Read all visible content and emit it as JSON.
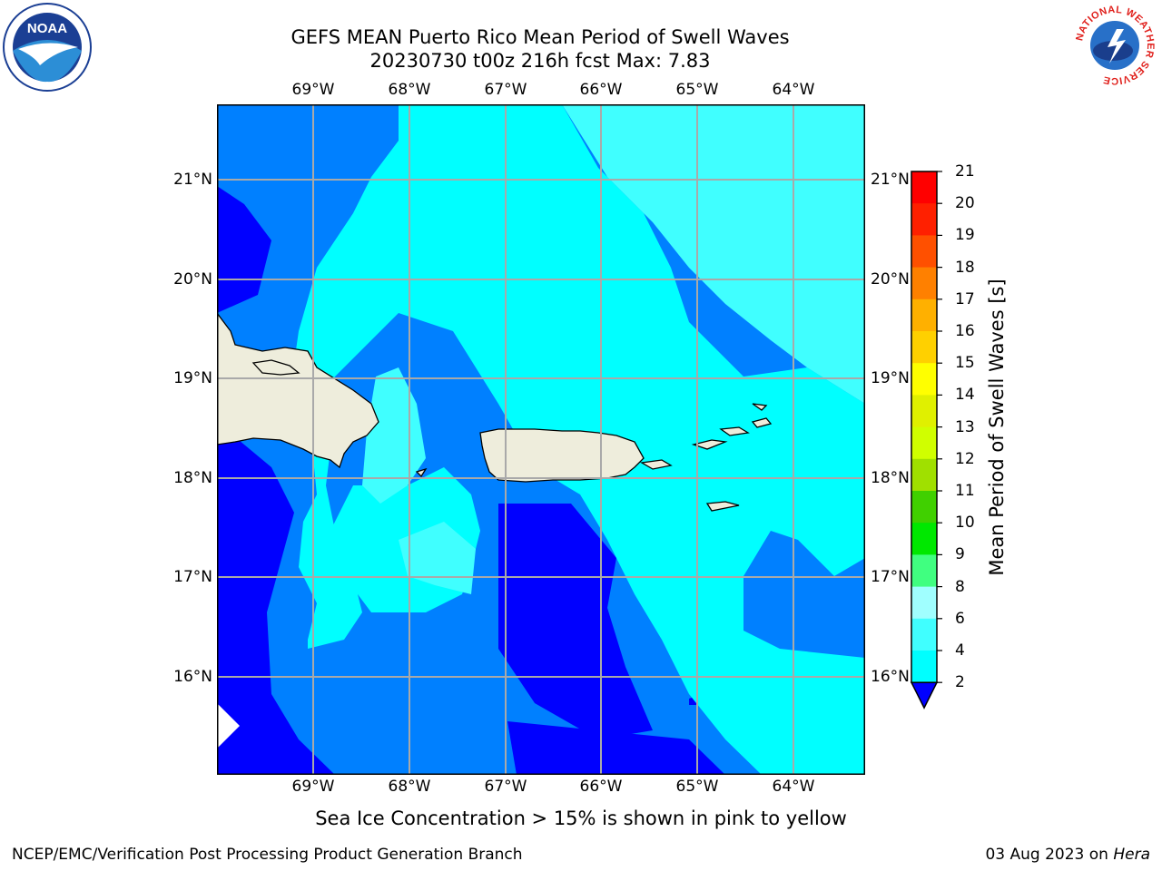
{
  "title": {
    "line1": "GEFS MEAN Puerto Rico Mean Period of Swell Waves",
    "line2": "20230730 t00z 216h fcst   Max: 7.83"
  },
  "map": {
    "lon_labels": [
      "69°W",
      "68°W",
      "67°W",
      "66°W",
      "65°W",
      "64°W"
    ],
    "lat_labels": [
      "21°N",
      "20°N",
      "19°N",
      "18°N",
      "17°N",
      "16°N"
    ],
    "lon_range": [
      -70.0,
      -63.25
    ],
    "lat_range": [
      15.0,
      21.75
    ],
    "gridlines": true,
    "land_color": "#eeeddc"
  },
  "colorbar": {
    "label": "Mean Period of Swell Waves [s]",
    "ticks": [
      "2",
      "4",
      "6",
      "8",
      "9",
      "10",
      "11",
      "12",
      "13",
      "14",
      "15",
      "16",
      "17",
      "18",
      "19",
      "20",
      "21"
    ],
    "colors": [
      "#0000ff",
      "#0080ff",
      "#00ffff",
      "#40ffff",
      "#a0ffff",
      "#40ff80",
      "#00e800",
      "#40d000",
      "#a0e000",
      "#d0ff00",
      "#e0f000",
      "#ffff00",
      "#ffd000",
      "#ffb000",
      "#ff8000",
      "#ff5000",
      "#ff2000",
      "#ff0000"
    ],
    "extend": "min"
  },
  "note": "Sea Ice Concentration > 15% is shown in pink to yellow",
  "footer": {
    "left": "NCEP/EMC/Verification Post Processing Product Generation Branch",
    "right_date": "03 Aug 2023 on ",
    "right_machine": "Hera"
  },
  "logos": {
    "left": "NOAA",
    "right": "NATIONAL WEATHER SERVICE"
  }
}
